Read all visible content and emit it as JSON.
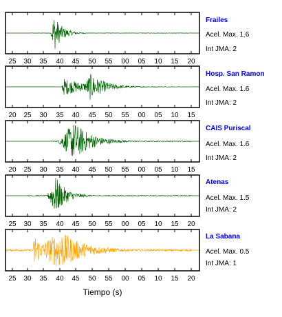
{
  "chart_data": {
    "type": "seismogram",
    "xlabel": "Tiempo (s)",
    "panels": [
      {
        "station": "Frailes",
        "acel_label": "Acel. Max. 1.6",
        "int_label": "Int JMA: 2",
        "color": "#006400",
        "tick_labels": [
          "25",
          "30",
          "35",
          "40",
          "45",
          "50",
          "55",
          "00",
          "05",
          "10",
          "15",
          "20"
        ],
        "signal": {
          "start": 35,
          "arrival": 66,
          "peak": 70,
          "end": 270,
          "amp": 1.0,
          "noise": 0.01,
          "decay": 12
        }
      },
      {
        "station": "Hosp. San Ramon",
        "acel_label": "Acel. Max. 1.6",
        "int_label": "Int JMA: 2",
        "color": "#006400",
        "tick_labels": [
          "20",
          "25",
          "30",
          "35",
          "40",
          "45",
          "50",
          "55",
          "00",
          "05",
          "10",
          "15"
        ],
        "signal": {
          "start": 82,
          "arrival": 82,
          "peak": 84,
          "end": 270,
          "amp": 0.45,
          "noise": 0.005,
          "decay": 40,
          "second": {
            "arrival": 113,
            "peak": 123,
            "amp": 0.7,
            "decay": 22
          }
        }
      },
      {
        "station": "CAIS Puriscal",
        "acel_label": "Acel. Max. 1.6",
        "int_label": "Int JMA: 2",
        "color": "#006400",
        "tick_labels": [
          "20",
          "25",
          "30",
          "35",
          "40",
          "45",
          "50",
          "55",
          "00",
          "05",
          "10",
          "15"
        ],
        "signal": {
          "start": 66,
          "arrival": 75,
          "peak": 100,
          "end": 270,
          "amp": 1.0,
          "noise": 0.02,
          "decay": 25
        }
      },
      {
        "station": "Atenas",
        "acel_label": "Acel. Max. 1.5",
        "int_label": "Int JMA: 2",
        "color": "#006400",
        "tick_labels": [
          "25",
          "30",
          "35",
          "40",
          "45",
          "50",
          "55",
          "00",
          "05",
          "10",
          "15",
          "20"
        ],
        "signal": {
          "start": 33,
          "arrival": 60,
          "peak": 73,
          "end": 270,
          "amp": 1.0,
          "noise": 0.02,
          "decay": 15
        }
      },
      {
        "station": "La Sabana",
        "acel_label": "Acel. Max. 0.5",
        "int_label": "Int JMA: 1",
        "color": "#ffa500",
        "tick_labels": [
          "25",
          "30",
          "35",
          "40",
          "45",
          "50",
          "55",
          "00",
          "05",
          "10",
          "15",
          "20"
        ],
        "signal": {
          "start": 0,
          "arrival": 38,
          "peak": 80,
          "end": 270,
          "amp": 1.0,
          "noise": 0.05,
          "decay": 35,
          "second": {
            "arrival": 40,
            "peak": 42,
            "amp": 1.0,
            "decay": 10
          }
        }
      }
    ]
  }
}
